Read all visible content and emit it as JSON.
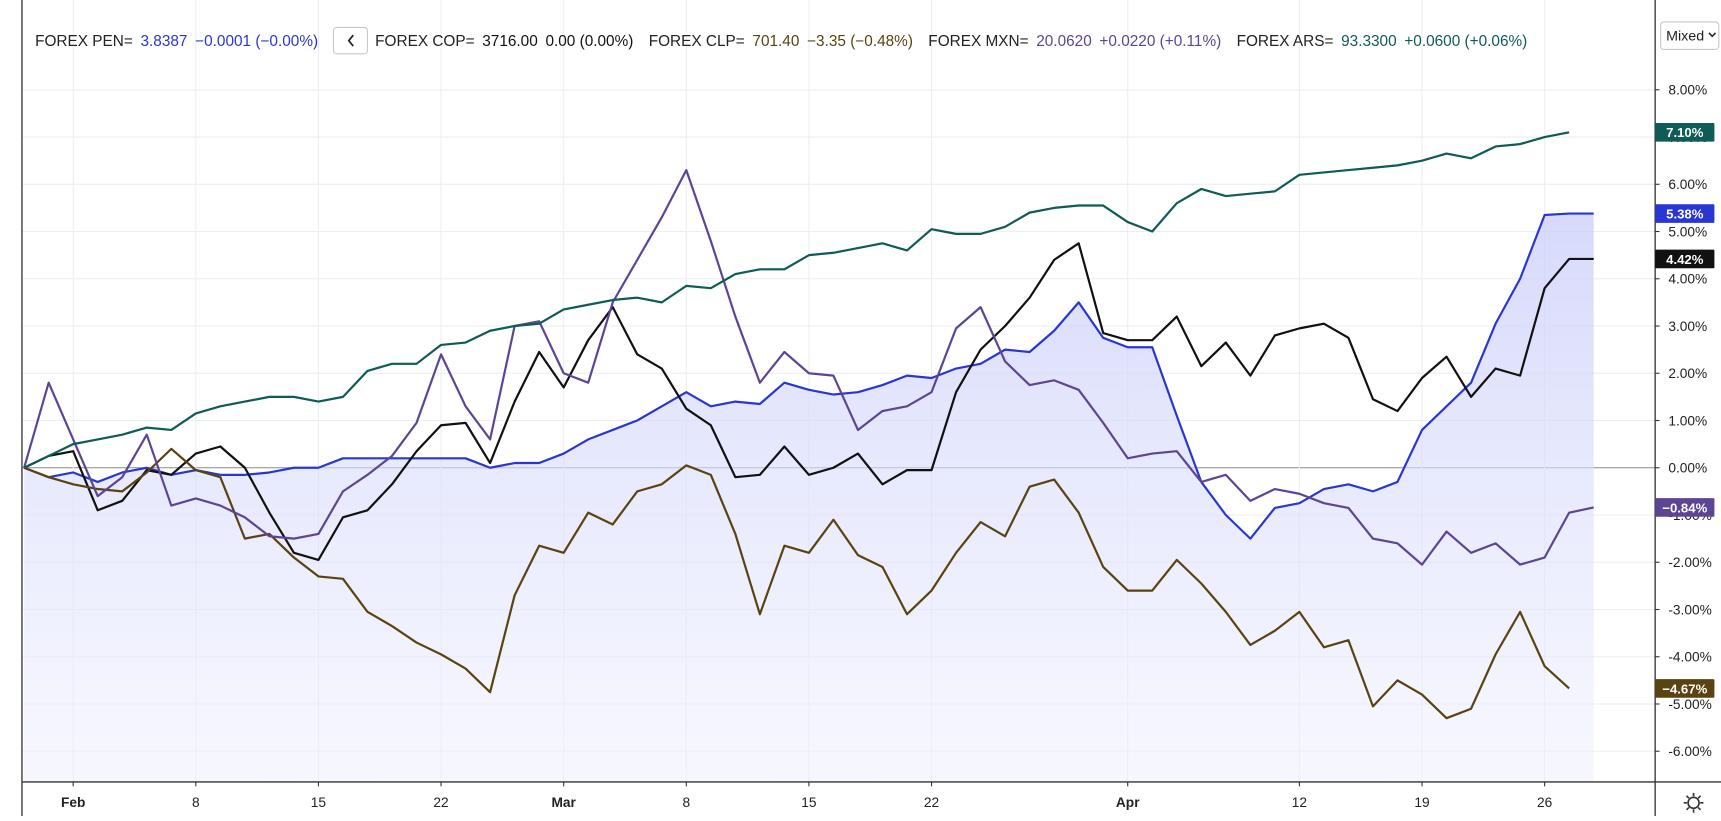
{
  "chart_data": {
    "type": "line",
    "scale_mode": "Mixed",
    "grid": true,
    "categories": [
      null,
      null,
      "Feb",
      null,
      null,
      null,
      null,
      "8",
      null,
      null,
      null,
      null,
      "15",
      null,
      null,
      null,
      null,
      "22",
      null,
      null,
      null,
      null,
      "Mar",
      null,
      null,
      null,
      null,
      "8",
      null,
      null,
      null,
      null,
      "15",
      null,
      null,
      null,
      null,
      "22",
      null,
      null,
      null,
      null,
      null,
      null,
      null,
      "Apr",
      null,
      null,
      null,
      null,
      null,
      null,
      "12",
      null,
      null,
      null,
      null,
      "19",
      null,
      null,
      null,
      null,
      "26",
      null,
      null
    ],
    "ylim": [
      -6.65,
      9.9
    ],
    "yticks": [
      {
        "value": 8,
        "label": "8.00%"
      },
      {
        "value": 7,
        "label": "7.00%"
      },
      {
        "value": 6,
        "label": "6.00%"
      },
      {
        "value": 5,
        "label": "5.00%"
      },
      {
        "value": 4,
        "label": "4.00%"
      },
      {
        "value": 3,
        "label": "3.00%"
      },
      {
        "value": 2,
        "label": "2.00%"
      },
      {
        "value": 1,
        "label": "1.00%"
      },
      {
        "value": 0,
        "label": "0.00%"
      },
      {
        "value": -1,
        "label": "-1.00%"
      },
      {
        "value": -2,
        "label": "-2.00%"
      },
      {
        "value": -3,
        "label": "-3.00%"
      },
      {
        "value": -4,
        "label": "-4.00%"
      },
      {
        "value": -5,
        "label": "-5.00%"
      },
      {
        "value": -6,
        "label": "-6.00%"
      }
    ],
    "series": [
      {
        "name": "FOREX PEN=",
        "color": "#2a36d4",
        "area": true,
        "quote": {
          "price": "3.8387",
          "change": "−0.0001 (−0.00%)"
        },
        "last_label": "5.38%",
        "values": [
          0,
          -0.2,
          -0.1,
          -0.3,
          -0.1,
          0.0,
          -0.15,
          -0.05,
          -0.15,
          -0.15,
          -0.1,
          0.0,
          0.0,
          0.2,
          0.2,
          0.2,
          0.2,
          0.2,
          0.2,
          0.0,
          0.1,
          0.1,
          0.3,
          0.6,
          0.8,
          1.0,
          1.3,
          1.6,
          1.3,
          1.4,
          1.35,
          1.8,
          1.65,
          1.55,
          1.6,
          1.75,
          1.95,
          1.9,
          2.1,
          2.2,
          2.5,
          2.45,
          2.9,
          3.5,
          2.75,
          2.55,
          2.55,
          1.1,
          -0.3,
          -1.0,
          -1.5,
          -0.85,
          -0.75,
          -0.45,
          -0.35,
          -0.5,
          -0.3,
          0.8,
          1.3,
          1.8,
          3.05,
          4.0,
          5.35,
          5.38,
          5.38
        ]
      },
      {
        "name": "FOREX COP=",
        "color": "#111111",
        "quote": {
          "price": "3716.00",
          "change": "0.00 (0.00%)"
        },
        "last_label": "4.42%",
        "values": [
          0,
          0.25,
          0.35,
          -0.9,
          -0.7,
          -0.05,
          -0.15,
          0.3,
          0.45,
          0.0,
          -0.95,
          -1.8,
          -1.95,
          -1.05,
          -0.9,
          -0.35,
          0.35,
          0.9,
          0.95,
          0.1,
          1.4,
          2.45,
          1.7,
          2.7,
          3.4,
          2.4,
          2.1,
          1.25,
          0.9,
          -0.2,
          -0.15,
          0.45,
          -0.15,
          0.0,
          0.3,
          -0.35,
          -0.05,
          -0.05,
          1.6,
          2.5,
          3.0,
          3.6,
          4.4,
          4.75,
          2.85,
          2.7,
          2.7,
          3.2,
          2.15,
          2.65,
          1.95,
          2.8,
          2.95,
          3.05,
          2.75,
          1.45,
          1.2,
          1.9,
          2.35,
          1.5,
          2.1,
          1.95,
          3.8,
          4.42,
          4.42
        ]
      },
      {
        "name": "FOREX CLP=",
        "color": "#5a4311",
        "quote": {
          "price": "701.40",
          "change": "−3.35 (−0.48%)"
        },
        "last_label": "−4.67%",
        "values": [
          0,
          -0.2,
          -0.35,
          -0.45,
          -0.5,
          -0.1,
          0.4,
          -0.05,
          -0.2,
          -1.5,
          -1.4,
          -1.9,
          -2.3,
          -2.35,
          -3.05,
          -3.35,
          -3.7,
          -3.95,
          -4.25,
          -4.75,
          -2.7,
          -1.65,
          -1.8,
          -0.95,
          -1.2,
          -0.5,
          -0.35,
          0.05,
          -0.15,
          -1.4,
          -3.1,
          -1.65,
          -1.8,
          -1.1,
          -1.85,
          -2.1,
          -3.1,
          -2.6,
          -1.8,
          -1.15,
          -1.45,
          -0.4,
          -0.25,
          -0.95,
          -2.1,
          -2.6,
          -2.6,
          -1.95,
          -2.45,
          -3.05,
          -3.75,
          -3.45,
          -3.05,
          -3.8,
          -3.65,
          -5.05,
          -4.5,
          -4.8,
          -5.3,
          -5.1,
          -3.95,
          -3.05,
          -4.2,
          -4.67,
          null
        ]
      },
      {
        "name": "FOREX MXN=",
        "color": "#5d4595",
        "quote": {
          "price": "20.0620",
          "change": "+0.0220 (+0.11%)"
        },
        "last_label": "−0.84%",
        "values": [
          0,
          1.8,
          0.6,
          -0.6,
          -0.2,
          0.7,
          -0.8,
          -0.65,
          -0.8,
          -1.05,
          -1.45,
          -1.5,
          -1.4,
          -0.5,
          -0.15,
          0.25,
          0.95,
          2.4,
          1.3,
          0.6,
          3.0,
          3.1,
          2.0,
          1.8,
          3.5,
          4.4,
          5.3,
          6.3,
          4.8,
          3.2,
          1.8,
          2.45,
          2.0,
          1.95,
          0.8,
          1.2,
          1.3,
          1.6,
          2.95,
          3.4,
          2.25,
          1.75,
          1.85,
          1.65,
          0.95,
          0.2,
          0.3,
          0.35,
          -0.3,
          -0.15,
          -0.7,
          -0.45,
          -0.55,
          -0.75,
          -0.85,
          -1.5,
          -1.6,
          -2.05,
          -1.35,
          -1.8,
          -1.6,
          -2.05,
          -1.9,
          -0.95,
          -0.84
        ]
      },
      {
        "name": "FOREX ARS=",
        "color": "#0f5b55",
        "quote": {
          "price": "93.3300",
          "change": "+0.0600 (+0.06%)"
        },
        "last_label": "7.10%",
        "values": [
          0,
          0.25,
          0.5,
          0.6,
          0.7,
          0.85,
          0.8,
          1.15,
          1.3,
          1.4,
          1.5,
          1.5,
          1.4,
          1.5,
          2.05,
          2.2,
          2.2,
          2.6,
          2.65,
          2.9,
          3.0,
          3.05,
          3.35,
          3.45,
          3.55,
          3.6,
          3.5,
          3.85,
          3.8,
          4.1,
          4.2,
          4.2,
          4.5,
          4.55,
          4.65,
          4.75,
          4.6,
          5.05,
          4.95,
          4.95,
          5.1,
          5.4,
          5.5,
          5.55,
          5.55,
          5.2,
          5.0,
          5.6,
          5.9,
          5.75,
          5.8,
          5.85,
          6.2,
          6.25,
          6.3,
          6.35,
          6.4,
          6.5,
          6.65,
          6.55,
          6.8,
          6.85,
          7.0,
          7.1,
          null
        ]
      }
    ]
  }
}
